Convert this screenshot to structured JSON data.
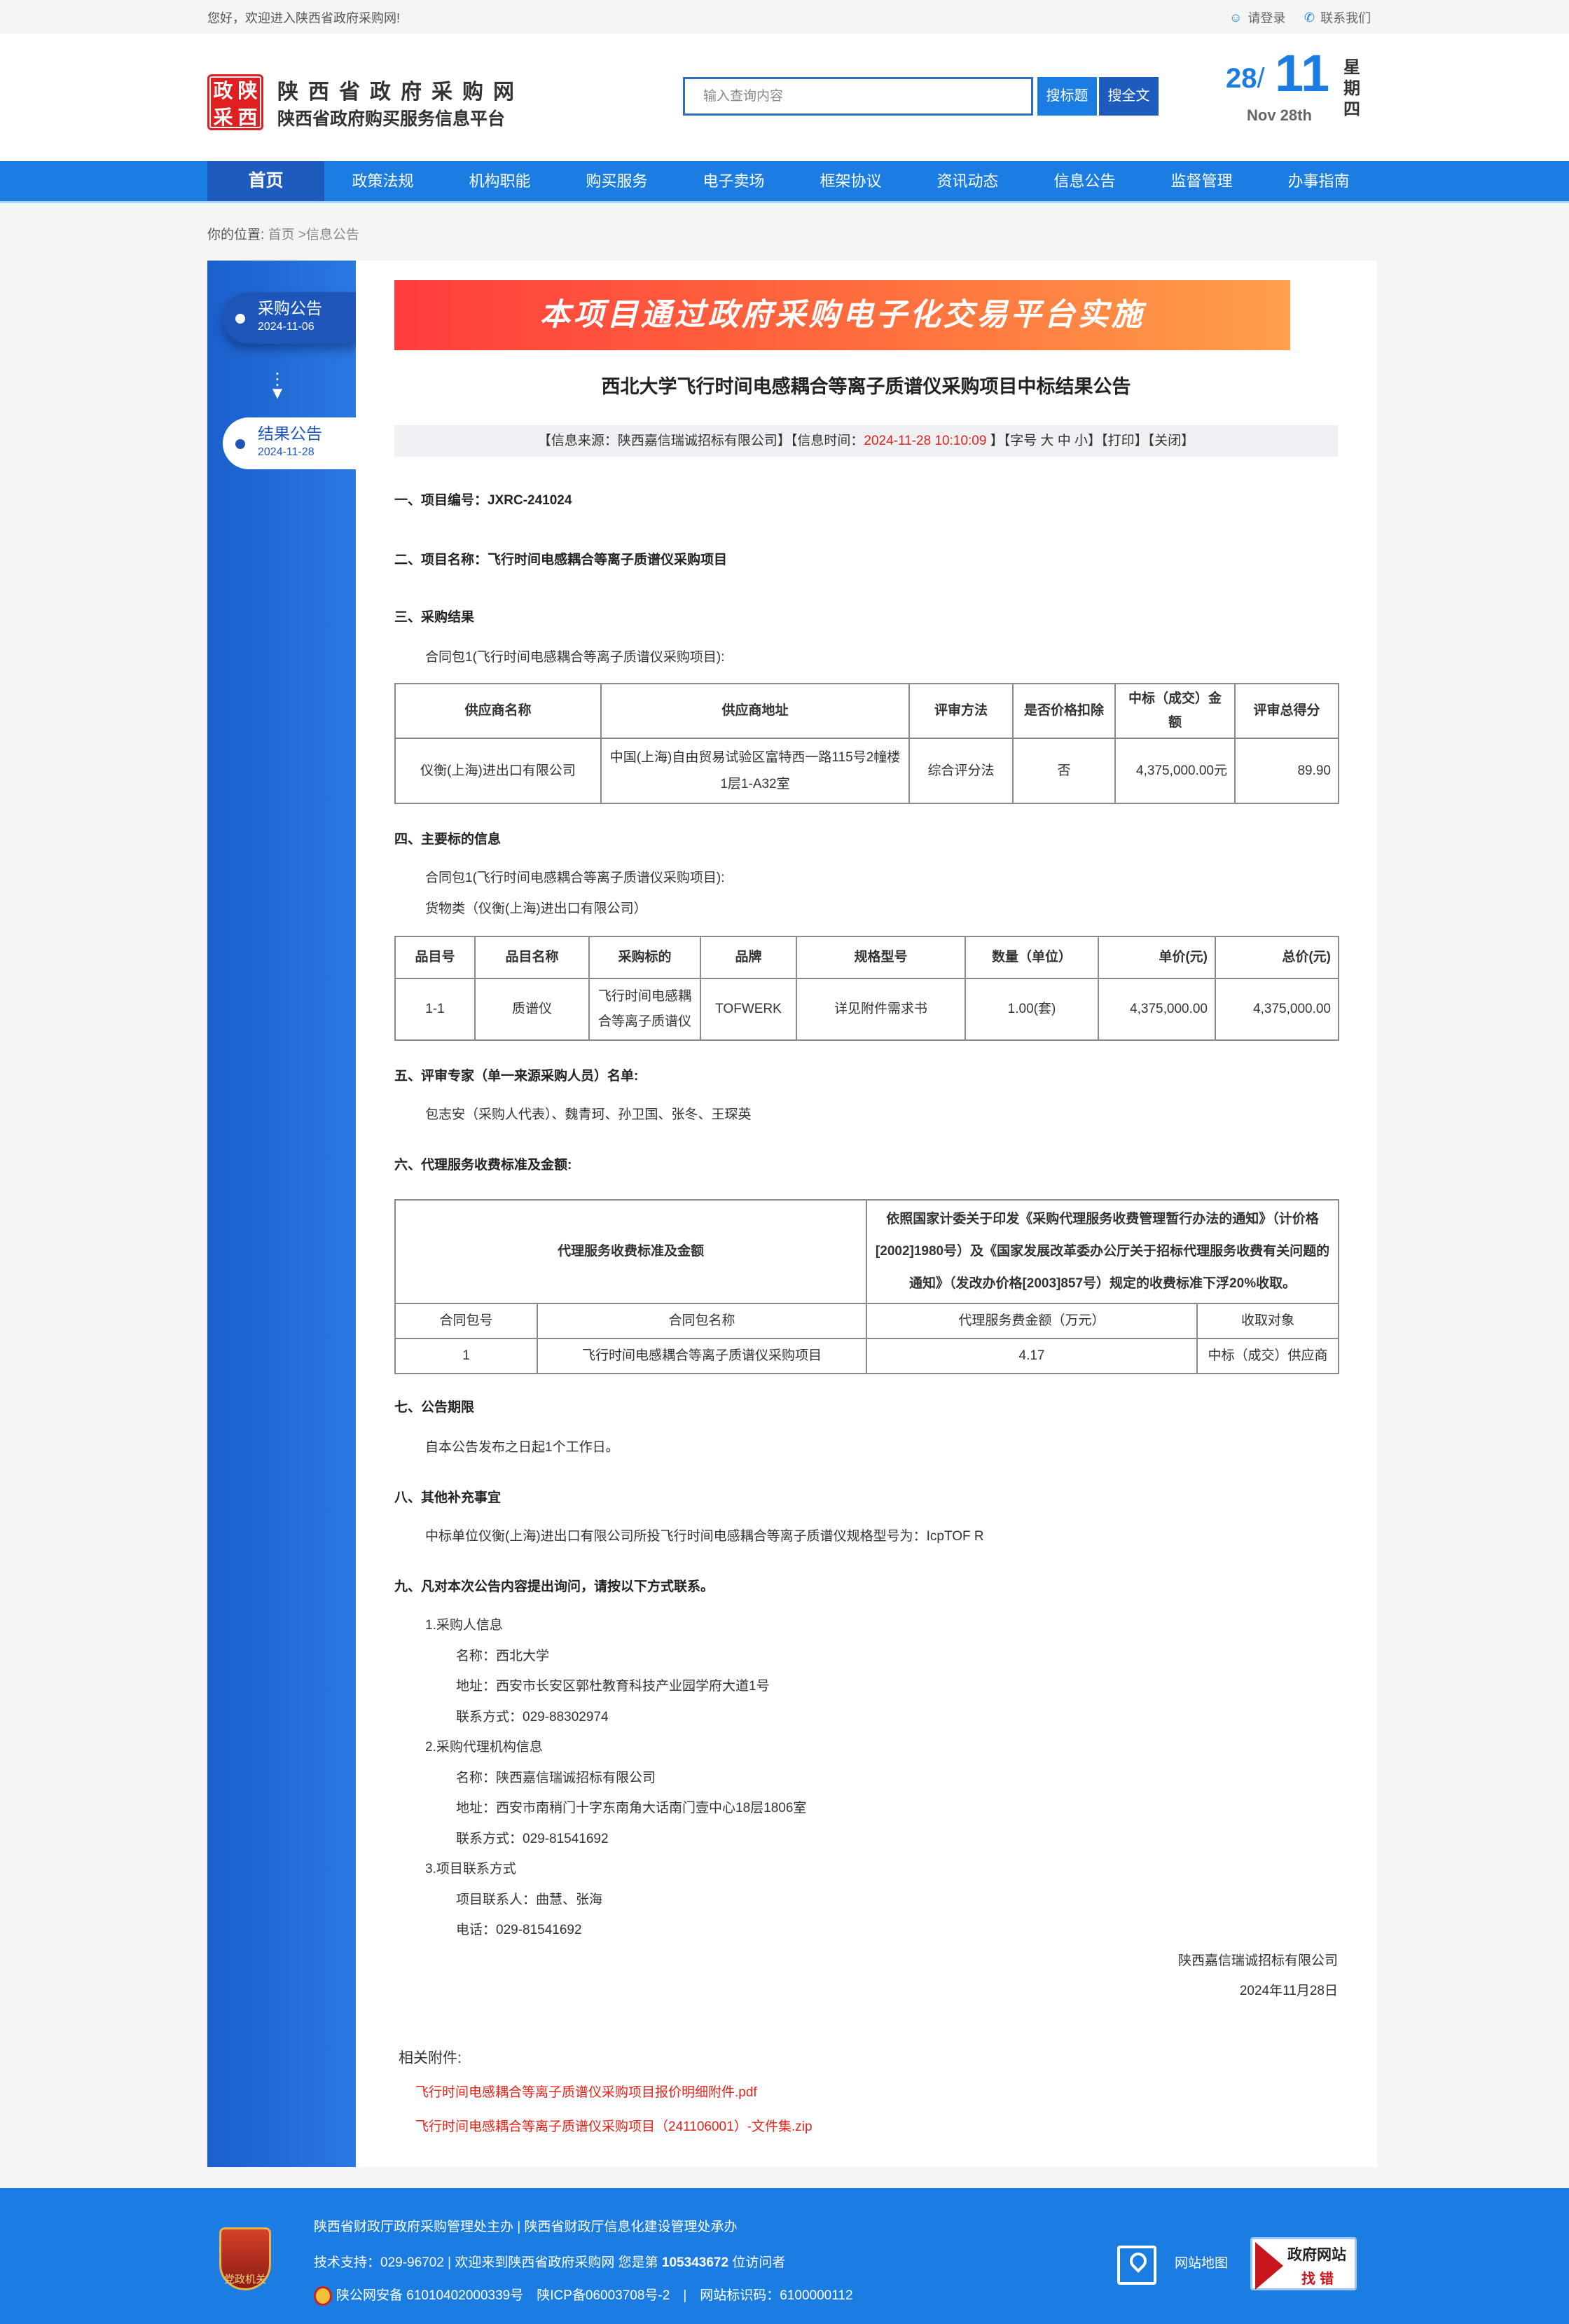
{
  "topbar": {
    "welcome": "您好，欢迎进入陕西省政府采购网!",
    "login": "请登录",
    "contact": "联系我们"
  },
  "header": {
    "logo_text": [
      "政",
      "陕",
      "采",
      "西"
    ],
    "site_name": "陕西省政府采购网",
    "site_sub": "陕西省政府购买服务信息平台",
    "search_placeholder": "输入查询内容",
    "search_title_btn": "搜标题",
    "search_full_btn": "搜全文",
    "date": {
      "day": "28",
      "sep": "/",
      "month": "11",
      "en": "Nov 28th",
      "weekday": "星期四"
    }
  },
  "nav": {
    "items": [
      "首页",
      "政策法规",
      "机构职能",
      "购买服务",
      "电子卖场",
      "框架协议",
      "资讯动态",
      "信息公告",
      "监督管理",
      "办事指南"
    ],
    "active": 0
  },
  "breadcrumb": {
    "label": "你的位置:",
    "home": "首页",
    "sep": ">",
    "current": "信息公告"
  },
  "sidebar": {
    "items": [
      {
        "label": "采购公告",
        "date": "2024-11-06"
      },
      {
        "label": "结果公告",
        "date": "2024-11-28"
      }
    ],
    "arrow_icon": "arrow-down-icon"
  },
  "article": {
    "banner": "本项目通过政府采购电子化交易平台实施",
    "title": "西北大学飞行时间电感耦合等离子质谱仪采购项目中标结果公告",
    "info": {
      "source": "【信息来源：陕西嘉信瑞诚招标有限公司】【信息时间：",
      "time": "2024-11-28 10:10:09",
      "font": " 】【字号 大 中 小】",
      "print": "【打印】",
      "close": "【关闭】"
    },
    "s1": "一、项目编号：JXRC-241024",
    "s2": "二、项目名称：飞行时间电感耦合等离子质谱仪采购项目",
    "s3": {
      "h": "三、采购结果",
      "p": "合同包1(飞行时间电感耦合等离子质谱仪采购项目):",
      "headers": [
        "供应商名称",
        "供应商地址",
        "评审方法",
        "是否价格扣除",
        "中标（成交）金额",
        "评审总得分"
      ],
      "row": [
        "仪衡(上海)进出口有限公司",
        "中国(上海)自由贸易试验区富特西一路115号2幢楼1层1-A32室",
        "综合评分法",
        "否",
        "4,375,000.00元",
        "89.90"
      ]
    },
    "s4": {
      "h": "四、主要标的信息",
      "p1": "合同包1(飞行时间电感耦合等离子质谱仪采购项目):",
      "p2": "货物类（仪衡(上海)进出口有限公司）",
      "headers": [
        "品目号",
        "品目名称",
        "采购标的",
        "品牌",
        "规格型号",
        "数量（单位）",
        "单价(元)",
        "总价(元)"
      ],
      "row": [
        "1-1",
        "质谱仪",
        "飞行时间电感耦合等离子质谱仪",
        "TOFWERK",
        "详见附件需求书",
        "1.00(套)",
        "4,375,000.00",
        "4,375,000.00"
      ]
    },
    "s5": {
      "h": "五、评审专家（单一来源采购人员）名单:",
      "p": "包志安（采购人代表）、魏青珂、孙卫国、张冬、王琛英"
    },
    "s6": {
      "h": "六、代理服务收费标准及金额:",
      "label": "代理服务收费标准及金额",
      "desc": "依照国家计委关于印发《采购代理服务收费管理暂行办法的通知》（计价格[2002]1980号）及《国家发展改革委办公厅关于招标代理服务收费有关问题的通知》（发改办价格[2003]857号）规定的收费标准下浮20%收取。",
      "headers": [
        "合同包号",
        "合同包名称",
        "代理服务费金额（万元）",
        "收取对象"
      ],
      "row": [
        "1",
        "飞行时间电感耦合等离子质谱仪采购项目",
        "4.17",
        "中标（成交）供应商"
      ]
    },
    "s7": {
      "h": "七、公告期限",
      "p": "自本公告发布之日起1个工作日。"
    },
    "s8": {
      "h": "八、其他补充事宜",
      "p": "中标单位仪衡(上海)进出口有限公司所投飞行时间电感耦合等离子质谱仪规格型号为：IcpTOF R"
    },
    "s9": {
      "h": "九、凡对本次公告内容提出询问，请按以下方式联系。",
      "items": [
        {
          "t": "1.采购人信息",
          "l": 1
        },
        {
          "t": "名称：西北大学",
          "l": 2
        },
        {
          "t": "地址：西安市长安区郭杜教育科技产业园学府大道1号",
          "l": 2
        },
        {
          "t": "联系方式：029-88302974",
          "l": 2
        },
        {
          "t": "2.采购代理机构信息",
          "l": 1
        },
        {
          "t": "名称：陕西嘉信瑞诚招标有限公司",
          "l": 2
        },
        {
          "t": "地址：西安市南稍门十字东南角大话南门壹中心18层1806室",
          "l": 2
        },
        {
          "t": "联系方式：029-81541692",
          "l": 2
        },
        {
          "t": "3.项目联系方式",
          "l": 1
        },
        {
          "t": "项目联系人：曲慧、张海",
          "l": 2
        },
        {
          "t": "电话：029-81541692",
          "l": 2
        }
      ]
    },
    "signer": "陕西嘉信瑞诚招标有限公司",
    "sign_date": "2024年11月28日",
    "attachments": {
      "label": "相关附件:",
      "files": [
        "飞行时间电感耦合等离子质谱仪采购项目报价明细附件.pdf",
        "飞行时间电感耦合等离子质谱仪采购项目（241106001）-文件集.zip"
      ]
    }
  },
  "footer": {
    "emblem_text": "党政机关",
    "line1": "陕西省财政厅政府采购管理处主办 | 陕西省财政厅信息化建设管理处承办",
    "line2_pre": "技术支持：029-96702 | 欢迎来到陕西省政府采购网 您是第 ",
    "visitors": "105343672",
    "line2_post": " 位访问者",
    "line3": "陕公网安备 61010402000339号　陕ICP备06003708号-2　|　网站标识码：6100000112",
    "sitemap": "网站地图",
    "badge_1": "政府网站",
    "badge_2": "找错"
  },
  "colors": {
    "primary": "#1b7de2",
    "nav_active": "#1d5bbd",
    "highlight": "#e2231a"
  }
}
